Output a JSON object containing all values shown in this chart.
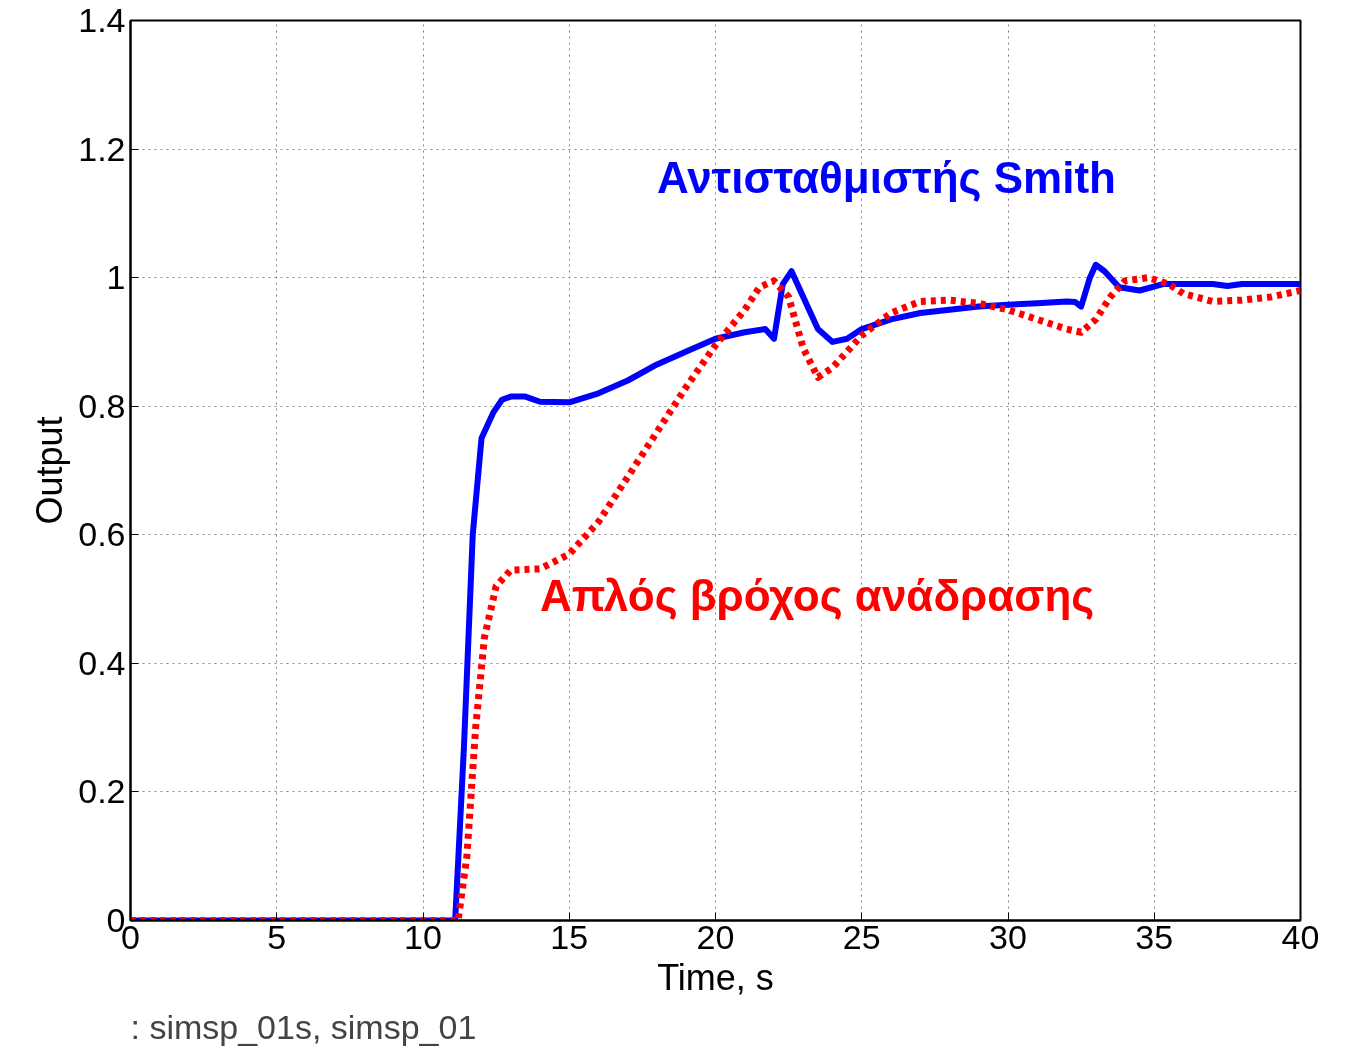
{
  "chart_data": {
    "type": "line",
    "xlabel": "Time, s",
    "ylabel": "Output",
    "xlim": [
      0,
      40
    ],
    "xticks": [
      0,
      5,
      10,
      15,
      20,
      25,
      30,
      35,
      40
    ],
    "ylim": [
      0,
      1.4
    ],
    "yticks": [
      0,
      0.2,
      0.4,
      0.6,
      0.8,
      1,
      1.2,
      1.4
    ],
    "grid": true,
    "annotations": [
      ": simsp_01s, simsp_01"
    ],
    "series": [
      {
        "name": "Αντισταθμιστής Smith",
        "color": "#0000ff",
        "line_style": "solid",
        "x": [
          0,
          11,
          11.1,
          11.4,
          11.7,
          12.0,
          12.4,
          12.7,
          13.0,
          13.5,
          14,
          15,
          16,
          17,
          18,
          19,
          20,
          21,
          21.7,
          22,
          22.3,
          22.6,
          23,
          23.5,
          24,
          24.5,
          25,
          26,
          27,
          28,
          29,
          30,
          31,
          32,
          32.3,
          32.5,
          32.8,
          33,
          33.3,
          33.8,
          34.5,
          35.3,
          36,
          37,
          37.5,
          38,
          40
        ],
        "values": [
          0,
          0,
          0,
          0.27,
          0.6,
          0.75,
          0.79,
          0.81,
          0.815,
          0.815,
          0.807,
          0.806,
          0.82,
          0.84,
          0.865,
          0.885,
          0.905,
          0.915,
          0.92,
          0.905,
          0.99,
          1.01,
          0.97,
          0.92,
          0.9,
          0.905,
          0.92,
          0.935,
          0.945,
          0.95,
          0.955,
          0.958,
          0.96,
          0.963,
          0.962,
          0.955,
          1.0,
          1.02,
          1.01,
          0.985,
          0.98,
          0.99,
          0.99,
          0.99,
          0.987,
          0.99,
          0.99
        ]
      },
      {
        "name": "Απλός βρόχος ανάδρασης",
        "color": "#ff0000",
        "line_style": "dotted",
        "x": [
          0,
          11.2,
          11.5,
          11.8,
          12.1,
          12.5,
          13,
          14,
          15,
          16,
          17,
          18,
          19,
          20,
          21,
          21.5,
          22,
          22.5,
          23,
          23.5,
          24,
          25,
          26,
          27,
          28,
          29,
          30,
          31,
          32,
          32.5,
          33,
          33.5,
          34,
          34.8,
          35.5,
          36,
          37,
          38,
          39,
          40
        ],
        "values": [
          0,
          0,
          0.1,
          0.3,
          0.44,
          0.52,
          0.545,
          0.547,
          0.57,
          0.62,
          0.69,
          0.76,
          0.83,
          0.895,
          0.95,
          0.985,
          0.995,
          0.97,
          0.89,
          0.845,
          0.86,
          0.91,
          0.945,
          0.963,
          0.965,
          0.96,
          0.95,
          0.935,
          0.92,
          0.915,
          0.935,
          0.97,
          0.995,
          1.0,
          0.99,
          0.975,
          0.963,
          0.965,
          0.97,
          0.98
        ]
      }
    ]
  }
}
